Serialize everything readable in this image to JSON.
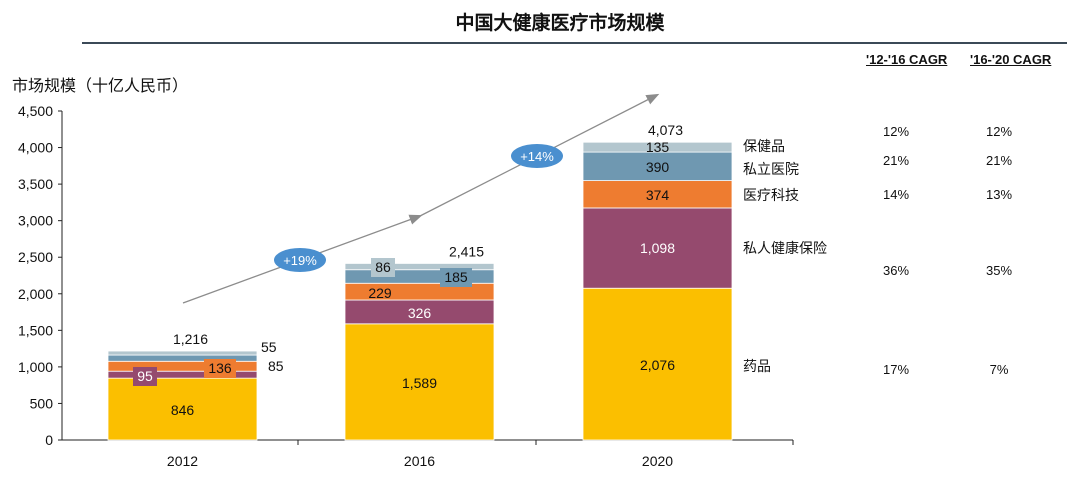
{
  "chart_data": {
    "type": "stacked-bar",
    "title": "中国大健康医疗市场规模",
    "ylabel": "市场规模（十亿人民币）",
    "xlabel": "",
    "ylim": [
      0,
      4500
    ],
    "yticks": [
      "0",
      "500",
      "1,000",
      "1,500",
      "2,000",
      "2,500",
      "3,000",
      "3,500",
      "4,000",
      "4,500"
    ],
    "categories": [
      "2012",
      "2016",
      "2020"
    ],
    "series": [
      {
        "name": "药品",
        "color": "#fbbf00",
        "values": [
          846,
          1589,
          2076
        ],
        "labels": [
          "846",
          "1,589",
          "2,076"
        ]
      },
      {
        "name": "私人健康保险",
        "color": "#954a6e",
        "values": [
          95,
          326,
          1098
        ],
        "labels": [
          "95",
          "326",
          "1,098"
        ]
      },
      {
        "name": "医疗科技",
        "color": "#ee7c30",
        "values": [
          136,
          229,
          374
        ],
        "labels": [
          "136",
          "229",
          "374"
        ]
      },
      {
        "name": "私立医院",
        "color": "#6f98b1",
        "values": [
          85,
          185,
          390
        ],
        "labels": [
          "85",
          "185",
          "390"
        ]
      },
      {
        "name": "保健品",
        "color": "#b3c6ce",
        "values": [
          55,
          86,
          135
        ],
        "labels": [
          "55",
          "86",
          "135"
        ]
      }
    ],
    "totals": [
      "1,216",
      "2,415",
      "4,073"
    ],
    "growth_labels": [
      "+19%",
      "+14%"
    ],
    "cagr_headers": [
      "'12-'16 CAGR",
      "'16-'20 CAGR"
    ],
    "cagr": [
      {
        "segment": "保健品",
        "c1": "12%",
        "c2": "12%"
      },
      {
        "segment": "私立医院",
        "c1": "21%",
        "c2": "21%"
      },
      {
        "segment": "医疗科技",
        "c1": "14%",
        "c2": "13%"
      },
      {
        "segment": "私人健康保险",
        "c1": "36%",
        "c2": "35%"
      },
      {
        "segment": "药品",
        "c1": "17%",
        "c2": "7%"
      }
    ]
  }
}
